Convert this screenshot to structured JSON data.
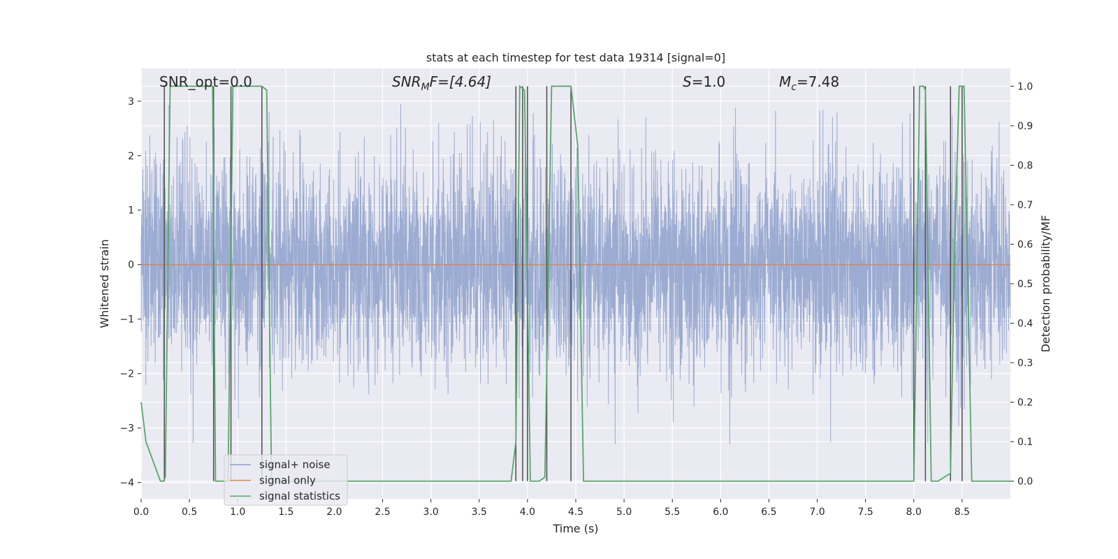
{
  "chart_data": {
    "type": "line",
    "title": "stats at each timestep for test data 19314 [signal=0]",
    "xlabel": "Time (s)",
    "ylabel": "Whitened strain",
    "ylabel_right": "Detection probability/MF",
    "xlim": [
      0.0,
      9.0
    ],
    "ylim": [
      -4.3,
      3.6
    ],
    "ylim_right": [
      -0.045,
      1.045
    ],
    "grid": true,
    "legend_position": "lower-left",
    "x_ticks": [
      "0.0",
      "0.5",
      "1.0",
      "1.5",
      "2.0",
      "2.5",
      "3.0",
      "3.5",
      "4.0",
      "4.5",
      "5.0",
      "5.5",
      "6.0",
      "6.5",
      "7.0",
      "7.5",
      "8.0",
      "8.5"
    ],
    "y_ticks": [
      "3",
      "2",
      "1",
      "0",
      "−1",
      "−2",
      "−3",
      "−4"
    ],
    "y_ticks_right": [
      "1.0",
      "0.9",
      "0.8",
      "0.7",
      "0.6",
      "0.5",
      "0.4",
      "0.3",
      "0.2",
      "0.1",
      "0.0"
    ],
    "annotations": {
      "snr_opt": "SNR_opt=0.0",
      "snr_mf_base": "SNR",
      "snr_mf_sub": "M",
      "snr_mf_rest": "F=[4.64]",
      "s_label": "S",
      "s_value": "=1.0",
      "mc_base": "M",
      "mc_sub": "c",
      "mc_value": "=7.48"
    },
    "series": [
      {
        "name": "signal+ noise",
        "color": "#8da0cb",
        "description_of_values": "whitened noise strain, approximately Gaussian",
        "envelope": {
          "typical_range": [
            -2.0,
            2.0
          ],
          "peak_max": 3.35,
          "peak_min": -4.0
        }
      },
      {
        "name": "signal only",
        "color": "#dd8452",
        "x": [
          0.0,
          9.0
        ],
        "y": [
          0.0,
          0.0
        ]
      },
      {
        "name": "signal statistics",
        "color": "#55a868",
        "axis": "right",
        "x": [
          0.0,
          0.05,
          0.2,
          0.23,
          0.25,
          0.3,
          0.45,
          0.7,
          0.74,
          0.77,
          0.8,
          0.9,
          0.95,
          0.99,
          1.02,
          1.1,
          1.25,
          1.3,
          1.35,
          2.5,
          3.83,
          3.88,
          3.92,
          3.97,
          4.03,
          4.07,
          4.12,
          4.18,
          4.25,
          4.35,
          4.45,
          4.52,
          4.58,
          5.0,
          7.0,
          7.4,
          8.0,
          8.06,
          8.1,
          8.12,
          8.18,
          8.2,
          8.25,
          8.38,
          8.42,
          8.47,
          8.52,
          8.6,
          8.65,
          9.0
        ],
        "y": [
          0.2,
          0.1,
          0.0,
          0.0,
          0.01,
          1.0,
          1.0,
          1.0,
          1.0,
          0.0,
          0.0,
          0.0,
          1.0,
          1.0,
          1.0,
          1.0,
          1.0,
          0.99,
          0.0,
          0.0,
          0.0,
          0.1,
          1.0,
          0.99,
          0.0,
          0.0,
          0.0,
          0.01,
          1.0,
          1.0,
          1.0,
          0.85,
          0.0,
          0.0,
          0.0,
          0.0,
          0.0,
          1.0,
          1.0,
          0.99,
          0.0,
          0.0,
          0.0,
          0.02,
          0.55,
          1.0,
          1.0,
          0.0,
          0.0,
          0.0
        ]
      }
    ],
    "vertical_markers": {
      "color": "#4c4c4c",
      "x": [
        0.24,
        0.75,
        0.93,
        1.25,
        3.88,
        3.95,
        4.0,
        4.2,
        4.45,
        8.0,
        8.12,
        8.38,
        8.5
      ]
    }
  }
}
